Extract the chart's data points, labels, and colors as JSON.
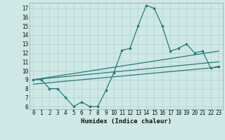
{
  "xlabel": "Humidex (Indice chaleur)",
  "ylabel": "",
  "bg_color": "#cde8e5",
  "grid_color": "#b8d8d5",
  "line_color": "#2a7a7a",
  "xlim": [
    -0.5,
    23.5
  ],
  "ylim": [
    5.7,
    17.6
  ],
  "yticks": [
    6,
    7,
    8,
    9,
    10,
    11,
    12,
    13,
    14,
    15,
    16,
    17
  ],
  "xticks": [
    0,
    1,
    2,
    3,
    4,
    5,
    6,
    7,
    8,
    9,
    10,
    11,
    12,
    13,
    14,
    15,
    16,
    17,
    18,
    19,
    20,
    21,
    22,
    23
  ],
  "series1_x": [
    0,
    1,
    2,
    3,
    4,
    5,
    6,
    7,
    8,
    9,
    10,
    11,
    12,
    13,
    14,
    15,
    16,
    17,
    18,
    19,
    20,
    21,
    22,
    23
  ],
  "series1_y": [
    9.0,
    9.0,
    8.0,
    8.0,
    7.0,
    6.0,
    6.5,
    6.0,
    6.0,
    7.8,
    9.8,
    12.3,
    12.5,
    15.0,
    17.3,
    17.0,
    15.0,
    12.2,
    12.5,
    13.0,
    12.0,
    12.2,
    10.3,
    10.5
  ],
  "series2_x": [
    0,
    23
  ],
  "series2_y": [
    9.0,
    12.2
  ],
  "series3_x": [
    0,
    23
  ],
  "series3_y": [
    9.0,
    11.0
  ],
  "series4_x": [
    0,
    23
  ],
  "series4_y": [
    8.5,
    10.4
  ]
}
